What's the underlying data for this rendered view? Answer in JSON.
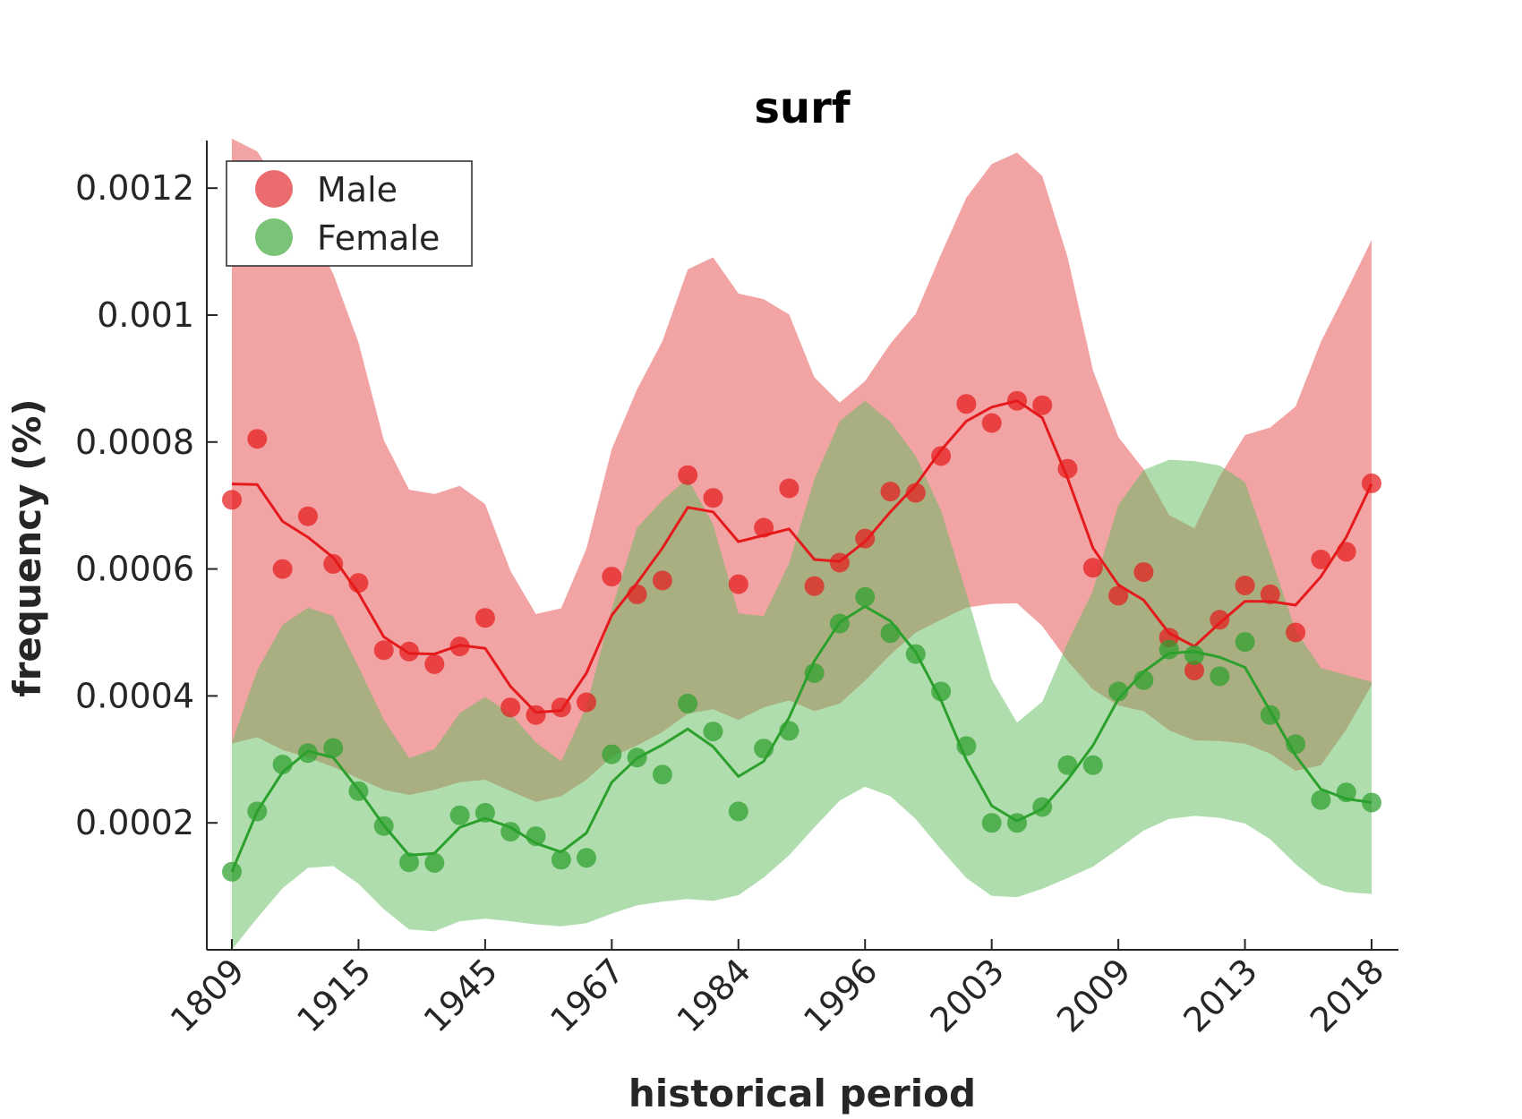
{
  "chart_data": {
    "type": "line",
    "title": "surf",
    "xlabel": "historical period",
    "ylabel": "frequency (%)",
    "x_tick_labels": [
      "1809",
      "1915",
      "1945",
      "1967",
      "1984",
      "1996",
      "2003",
      "2009",
      "2013",
      "2018"
    ],
    "y_ticks": [
      0.0002,
      0.0004,
      0.0006,
      0.0008,
      0.001,
      0.0012
    ],
    "y_tick_labels": [
      "0.0002",
      "0.0004",
      "0.0006",
      "0.0008",
      "0.001",
      "0.0012"
    ],
    "ylim": [
      0,
      0.001275
    ],
    "grid": false,
    "legend_position": "top-left",
    "series": [
      {
        "name": "Male",
        "color": "#e41a1c",
        "band_color": "#e6474a",
        "band_opacity": 0.5,
        "points": [
          0.000709,
          0.000805,
          0.0006,
          0.000683,
          0.000608,
          0.000578,
          0.000472,
          0.00047,
          0.00045,
          0.000478,
          0.000523,
          0.000382,
          0.00037,
          0.000382,
          0.00039,
          0.000588,
          0.00056,
          0.000582,
          0.000748,
          0.000712,
          0.000576,
          0.000665,
          0.000727,
          0.000573,
          0.00061,
          0.000648,
          0.000722,
          0.00072,
          0.000778,
          0.00086,
          0.00083,
          0.000865,
          0.000858,
          0.000758,
          0.000602,
          0.000558,
          0.000595,
          0.000492,
          0.00044,
          0.00052,
          0.000574,
          0.00056,
          0.0005,
          0.000615,
          0.000627,
          0.000735
        ],
        "smooth": [
          0.000734,
          0.000733,
          0.000675,
          0.00065,
          0.000618,
          0.000562,
          0.000493,
          0.000467,
          0.000466,
          0.00048,
          0.000475,
          0.000415,
          0.000374,
          0.000377,
          0.000436,
          0.000527,
          0.000578,
          0.000633,
          0.000697,
          0.00069,
          0.000643,
          0.000653,
          0.000663,
          0.000615,
          0.000612,
          0.000643,
          0.00069,
          0.000732,
          0.000787,
          0.000833,
          0.000855,
          0.000865,
          0.000838,
          0.000743,
          0.000633,
          0.000575,
          0.000551,
          0.000499,
          0.000478,
          0.000515,
          0.000549,
          0.000549,
          0.000543,
          0.000588,
          0.00065,
          0.000734
        ],
        "upper": [
          0.001278,
          0.001258,
          0.001196,
          0.001144,
          0.001065,
          0.000957,
          0.000803,
          0.000725,
          0.000718,
          0.000731,
          0.000702,
          0.000597,
          0.000529,
          0.000538,
          0.000632,
          0.000789,
          0.000883,
          0.000959,
          0.001072,
          0.001091,
          0.001034,
          0.001025,
          0.001001,
          0.000902,
          0.000862,
          0.000896,
          0.000955,
          0.001002,
          0.001096,
          0.001185,
          0.001238,
          0.001256,
          0.001219,
          0.001091,
          0.000913,
          0.000808,
          0.000757,
          0.000685,
          0.000664,
          0.000746,
          0.000811,
          0.000823,
          0.000856,
          0.000958,
          0.001037,
          0.001118
        ],
        "lower": [
          0.000325,
          0.000335,
          0.000315,
          0.000303,
          0.000288,
          0.00027,
          0.000252,
          0.000244,
          0.000252,
          0.000264,
          0.000268,
          0.00025,
          0.000233,
          0.000242,
          0.000268,
          0.000304,
          0.000322,
          0.000343,
          0.000372,
          0.000379,
          0.000362,
          0.000382,
          0.000393,
          0.000376,
          0.000388,
          0.000424,
          0.000465,
          0.0005,
          0.00052,
          0.000539,
          0.000545,
          0.000546,
          0.00051,
          0.000455,
          0.00041,
          0.000385,
          0.000376,
          0.000346,
          0.00033,
          0.000329,
          0.000325,
          0.000309,
          0.000282,
          0.000291,
          0.000347,
          0.000417
        ]
      },
      {
        "name": "Female",
        "color": "#2ca02c",
        "band_color": "#60bb5c",
        "band_opacity": 0.5,
        "points": [
          0.000123,
          0.000218,
          0.000292,
          0.00031,
          0.000318,
          0.00025,
          0.000195,
          0.000138,
          0.000137,
          0.000212,
          0.000216,
          0.000186,
          0.000179,
          0.000142,
          0.000145,
          0.000308,
          0.000303,
          0.000276,
          0.000388,
          0.000344,
          0.000218,
          0.000317,
          0.000345,
          0.000436,
          0.000514,
          0.000556,
          0.000499,
          0.000466,
          0.000407,
          0.000321,
          0.0002,
          0.0002,
          0.000225,
          0.000291,
          0.000291,
          0.000407,
          0.000425,
          0.000473,
          0.000464,
          0.000431,
          0.000485,
          0.00037,
          0.000324,
          0.000236,
          0.000248,
          0.000232
        ],
        "smooth": [
          0.000123,
          0.000218,
          0.00028,
          0.000313,
          0.000303,
          0.000252,
          0.000196,
          0.000149,
          0.000152,
          0.000193,
          0.000207,
          0.000193,
          0.000168,
          0.000154,
          0.000184,
          0.000264,
          0.000302,
          0.000323,
          0.000348,
          0.00032,
          0.000273,
          0.000297,
          0.000366,
          0.000455,
          0.000516,
          0.000541,
          0.000518,
          0.000469,
          0.000393,
          0.000299,
          0.000227,
          0.000203,
          0.000222,
          0.000268,
          0.000322,
          0.000395,
          0.000438,
          0.000467,
          0.00047,
          0.000461,
          0.000445,
          0.000376,
          0.000306,
          0.000253,
          0.000238,
          0.000232
        ],
        "upper": [
          0.000327,
          0.00044,
          0.000512,
          0.000539,
          0.000526,
          0.000446,
          0.000362,
          0.000302,
          0.000316,
          0.000373,
          0.000398,
          0.000372,
          0.000327,
          0.000297,
          0.000383,
          0.000537,
          0.000665,
          0.000708,
          0.000743,
          0.00067,
          0.00053,
          0.000526,
          0.000609,
          0.000741,
          0.000833,
          0.000865,
          0.000832,
          0.000778,
          0.000692,
          0.000562,
          0.000426,
          0.000358,
          0.000391,
          0.000484,
          0.000566,
          0.000701,
          0.000756,
          0.000772,
          0.00077,
          0.000763,
          0.000737,
          0.000622,
          0.000503,
          0.000444,
          0.000433,
          0.000422
        ],
        "lower": [
          0.0,
          5e-05,
          9.7e-05,
          0.000129,
          0.000132,
          0.000104,
          6.4e-05,
          3.2e-05,
          2.9e-05,
          4.5e-05,
          4.9e-05,
          4.5e-05,
          4e-05,
          3.7e-05,
          4.2e-05,
          5.7e-05,
          7e-05,
          7.6e-05,
          8e-05,
          7.7e-05,
          8.6e-05,
          0.000114,
          0.000149,
          0.000193,
          0.000235,
          0.000257,
          0.000242,
          0.000206,
          0.000158,
          0.000113,
          8.5e-05,
          8.3e-05,
          9.6e-05,
          0.000113,
          0.000131,
          0.000159,
          0.000188,
          0.000206,
          0.000211,
          0.000208,
          0.000199,
          0.000174,
          0.000135,
          0.000103,
          9.1e-05,
          8.8e-05
        ]
      }
    ]
  }
}
